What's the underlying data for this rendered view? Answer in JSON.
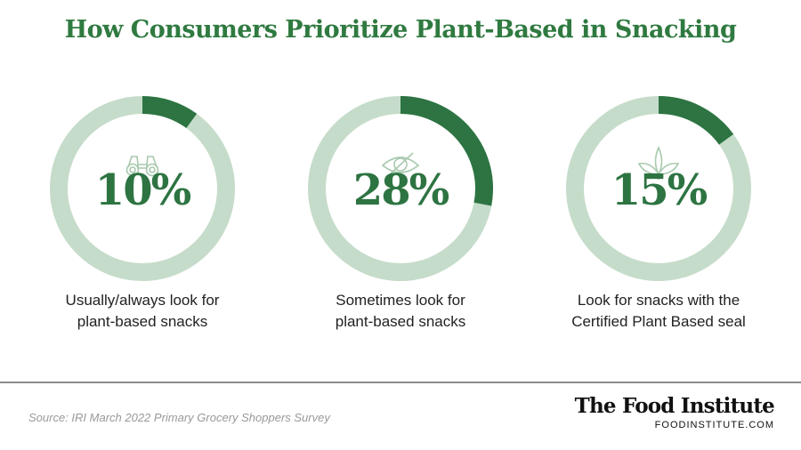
{
  "title": "How Consumers Prioritize Plant-Based in Snacking",
  "colors": {
    "title": "#2f7a40",
    "accent": "#2d7442",
    "track": "#c6dcca",
    "icon": "#a8c9ae",
    "divider": "#8a8a8a"
  },
  "chart_data": [
    {
      "type": "pie",
      "value": 10,
      "value_label": "10%",
      "label_line1": "Usually/always look for",
      "label_line2": "plant-based snacks",
      "icon": "binoculars-icon"
    },
    {
      "type": "pie",
      "value": 28,
      "value_label": "28%",
      "label_line1": "Sometimes look for",
      "label_line2": "plant-based snacks",
      "icon": "eye-icon"
    },
    {
      "type": "pie",
      "value": 15,
      "value_label": "15%",
      "label_line1": "Look for snacks with the",
      "label_line2": "Certified Plant Based seal",
      "icon": "leaf-icon"
    }
  ],
  "footer": {
    "source": "Source: IRI March 2022 Primary Grocery Shoppers Survey",
    "brand_name": "The Food Institute",
    "brand_url": "FOODINSTITUTE.COM"
  }
}
